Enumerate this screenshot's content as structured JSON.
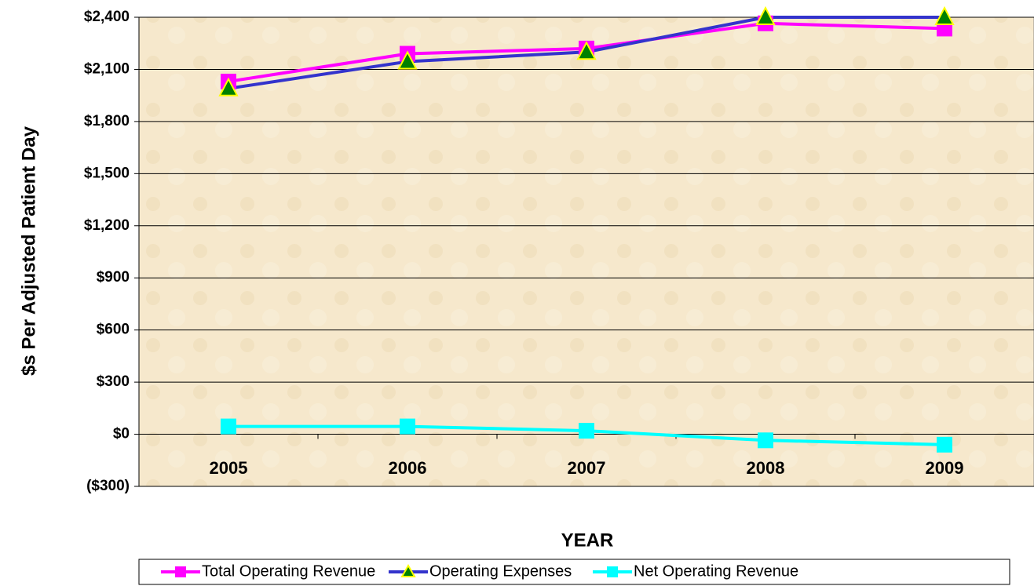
{
  "chart_data": {
    "type": "line",
    "x_label": "YEAR",
    "y_label": "$s Per Adjusted Patient Day",
    "categories": [
      "2005",
      "2006",
      "2007",
      "2008",
      "2009"
    ],
    "series": [
      {
        "name": "Total Operating Revenue",
        "color": "#ff00ff",
        "marker": "square",
        "values": [
          2030,
          2190,
          2220,
          2365,
          2335
        ]
      },
      {
        "name": "Operating Expenses",
        "color": "#3333cc",
        "marker": "triangle",
        "values": [
          1990,
          2145,
          2200,
          2400,
          2400
        ]
      },
      {
        "name": "Net Operating Revenue",
        "color": "#00ffff",
        "marker": "square",
        "values": [
          45,
          45,
          20,
          -35,
          -60
        ]
      }
    ],
    "ylim": [
      -300,
      2400
    ],
    "yticks": [
      {
        "value": -300,
        "label": "($300)"
      },
      {
        "value": 0,
        "label": "$0"
      },
      {
        "value": 300,
        "label": "$300"
      },
      {
        "value": 600,
        "label": "$600"
      },
      {
        "value": 900,
        "label": "$900"
      },
      {
        "value": 1200,
        "label": "$1,200"
      },
      {
        "value": 1500,
        "label": "$1,500"
      },
      {
        "value": 1800,
        "label": "$1,800"
      },
      {
        "value": 2100,
        "label": "$2,100"
      },
      {
        "value": 2400,
        "label": "$2,400"
      }
    ],
    "grid": true,
    "legend": "bottom"
  }
}
